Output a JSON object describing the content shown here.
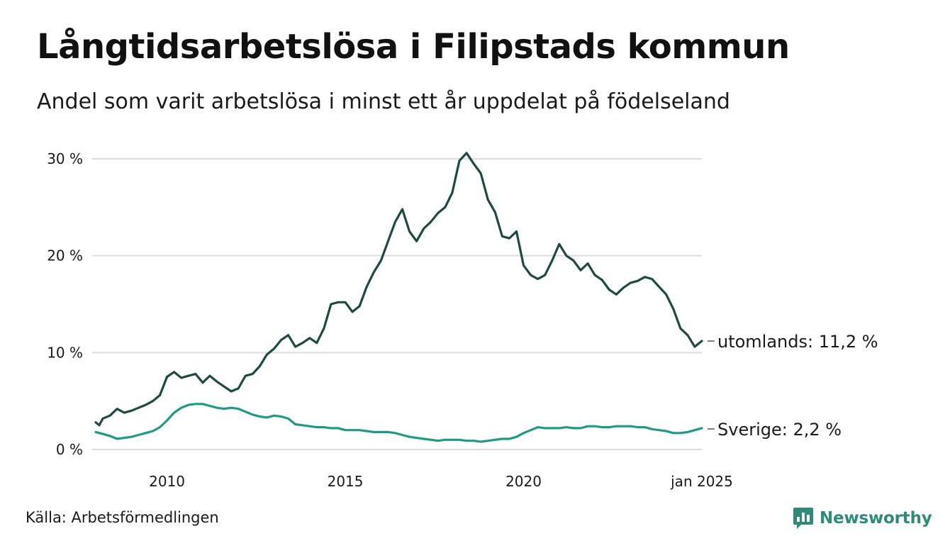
{
  "header": {
    "title": "Långtidsarbetslösa i Filipstads kommun",
    "subtitle": "Andel som varit arbetslösa i minst ett år uppdelat på födelseland"
  },
  "footer": {
    "source": "Källa: Arbetsförmedlingen",
    "brand": "Newsworthy"
  },
  "colors": {
    "utomlands": "#1f4a40",
    "sverige": "#1e9a88",
    "grid": "#dddddd",
    "brand": "#2e8b7a"
  },
  "chart_data": {
    "type": "line",
    "title": "Långtidsarbetslösa i Filipstads kommun",
    "subtitle": "Andel som varit arbetslösa i minst ett år uppdelat på födelseland",
    "xlabel": "",
    "ylabel": "",
    "xlim": [
      2008.0,
      2025.0
    ],
    "ylim": [
      0,
      30
    ],
    "grid": true,
    "y_ticks": [
      {
        "value": 0,
        "label": "0 %"
      },
      {
        "value": 10,
        "label": "10 %"
      },
      {
        "value": 20,
        "label": "20 %"
      },
      {
        "value": 30,
        "label": "30 %"
      }
    ],
    "x_ticks": [
      {
        "value": 2010,
        "label": "2010"
      },
      {
        "value": 2015,
        "label": "2015"
      },
      {
        "value": 2020,
        "label": "2020"
      },
      {
        "value": 2025,
        "label": "jan 2025"
      }
    ],
    "series": [
      {
        "name": "utomlands",
        "end_label": "utomlands: 11,2 %",
        "color": "#1f4a40",
        "x": [
          2008.0,
          2008.1,
          2008.2,
          2008.4,
          2008.6,
          2008.8,
          2009.0,
          2009.2,
          2009.4,
          2009.6,
          2009.8,
          2010.0,
          2010.2,
          2010.4,
          2010.6,
          2010.8,
          2011.0,
          2011.2,
          2011.4,
          2011.6,
          2011.8,
          2012.0,
          2012.2,
          2012.4,
          2012.6,
          2012.8,
          2013.0,
          2013.2,
          2013.4,
          2013.6,
          2013.8,
          2014.0,
          2014.2,
          2014.4,
          2014.6,
          2014.8,
          2015.0,
          2015.2,
          2015.4,
          2015.6,
          2015.8,
          2016.0,
          2016.2,
          2016.4,
          2016.6,
          2016.8,
          2017.0,
          2017.2,
          2017.4,
          2017.6,
          2017.8,
          2018.0,
          2018.2,
          2018.4,
          2018.6,
          2018.8,
          2019.0,
          2019.2,
          2019.4,
          2019.6,
          2019.8,
          2020.0,
          2020.2,
          2020.4,
          2020.6,
          2020.8,
          2021.0,
          2021.2,
          2021.4,
          2021.6,
          2021.8,
          2022.0,
          2022.2,
          2022.4,
          2022.6,
          2022.8,
          2023.0,
          2023.2,
          2023.4,
          2023.6,
          2023.8,
          2024.0,
          2024.2,
          2024.4,
          2024.6,
          2024.8,
          2025.0
        ],
        "values": [
          2.8,
          2.5,
          3.2,
          3.5,
          4.2,
          3.8,
          4.0,
          4.3,
          4.6,
          5.0,
          5.6,
          7.5,
          8.0,
          7.4,
          7.6,
          7.8,
          6.9,
          7.6,
          7.0,
          6.5,
          6.0,
          6.3,
          7.6,
          7.8,
          8.6,
          9.8,
          10.4,
          11.3,
          11.8,
          10.6,
          11.0,
          11.5,
          11.0,
          12.5,
          15.0,
          15.2,
          15.2,
          14.2,
          14.8,
          16.8,
          18.3,
          19.5,
          21.5,
          23.5,
          24.8,
          22.5,
          21.5,
          22.8,
          23.5,
          24.4,
          25.0,
          26.5,
          29.8,
          30.6,
          29.5,
          28.5,
          25.8,
          24.5,
          22.0,
          21.8,
          22.5,
          19.0,
          18.0,
          17.6,
          18.0,
          19.5,
          21.2,
          20.0,
          19.5,
          18.5,
          19.2,
          18.0,
          17.5,
          16.5,
          16.0,
          16.7,
          17.2,
          17.4,
          17.8,
          17.6,
          16.8,
          16.0,
          14.5,
          12.5,
          11.8,
          10.6,
          11.2
        ]
      },
      {
        "name": "Sverige",
        "end_label": "Sverige:  2,2 %",
        "color": "#1e9a88",
        "x": [
          2008.0,
          2008.2,
          2008.4,
          2008.6,
          2008.8,
          2009.0,
          2009.2,
          2009.4,
          2009.6,
          2009.8,
          2010.0,
          2010.2,
          2010.4,
          2010.6,
          2010.8,
          2011.0,
          2011.2,
          2011.4,
          2011.6,
          2011.8,
          2012.0,
          2012.2,
          2012.4,
          2012.6,
          2012.8,
          2013.0,
          2013.2,
          2013.4,
          2013.6,
          2013.8,
          2014.0,
          2014.2,
          2014.4,
          2014.6,
          2014.8,
          2015.0,
          2015.2,
          2015.4,
          2015.6,
          2015.8,
          2016.0,
          2016.2,
          2016.4,
          2016.6,
          2016.8,
          2017.0,
          2017.2,
          2017.4,
          2017.6,
          2017.8,
          2018.0,
          2018.2,
          2018.4,
          2018.6,
          2018.8,
          2019.0,
          2019.2,
          2019.4,
          2019.6,
          2019.8,
          2020.0,
          2020.2,
          2020.4,
          2020.6,
          2020.8,
          2021.0,
          2021.2,
          2021.4,
          2021.6,
          2021.8,
          2022.0,
          2022.2,
          2022.4,
          2022.6,
          2022.8,
          2023.0,
          2023.2,
          2023.4,
          2023.6,
          2023.8,
          2024.0,
          2024.2,
          2024.4,
          2024.6,
          2024.8,
          2025.0
        ],
        "values": [
          1.8,
          1.6,
          1.4,
          1.1,
          1.2,
          1.3,
          1.5,
          1.7,
          1.9,
          2.3,
          3.0,
          3.8,
          4.3,
          4.6,
          4.7,
          4.7,
          4.5,
          4.3,
          4.2,
          4.3,
          4.2,
          3.9,
          3.6,
          3.4,
          3.3,
          3.5,
          3.4,
          3.2,
          2.6,
          2.5,
          2.4,
          2.3,
          2.3,
          2.2,
          2.2,
          2.0,
          2.0,
          2.0,
          1.9,
          1.8,
          1.8,
          1.8,
          1.7,
          1.5,
          1.3,
          1.2,
          1.1,
          1.0,
          0.9,
          1.0,
          1.0,
          1.0,
          0.9,
          0.9,
          0.8,
          0.9,
          1.0,
          1.1,
          1.1,
          1.3,
          1.7,
          2.0,
          2.3,
          2.2,
          2.2,
          2.2,
          2.3,
          2.2,
          2.2,
          2.4,
          2.4,
          2.3,
          2.3,
          2.4,
          2.4,
          2.4,
          2.3,
          2.3,
          2.1,
          2.0,
          1.9,
          1.7,
          1.7,
          1.8,
          2.0,
          2.2
        ]
      }
    ]
  }
}
